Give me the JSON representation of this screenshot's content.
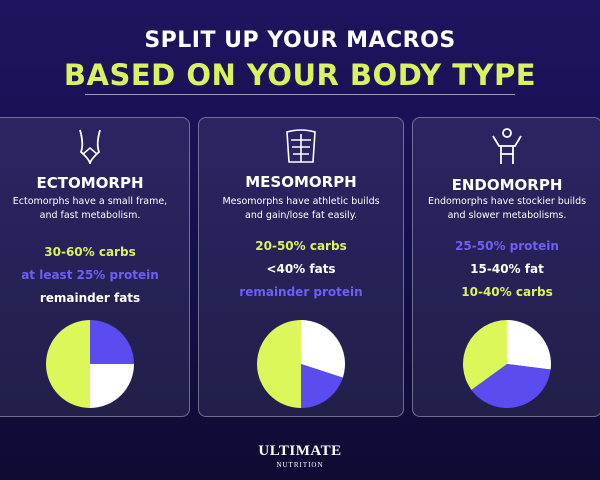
{
  "header": {
    "title": "SPLIT UP YOUR MACROS",
    "subtitle": "BASED ON YOUR BODY TYPE"
  },
  "cards": [
    {
      "title": "ECTOMORPH",
      "description": "Ectomorphs have  a small frame, and fast metabolism.",
      "macros": [
        {
          "text": "30-60% carbs",
          "color": "#d8f45c"
        },
        {
          "text": "at least 25% protein",
          "color": "#6f5ff5"
        },
        {
          "text": "remainder fats",
          "color": "#ffffff"
        }
      ]
    },
    {
      "title": "MESOMORPH",
      "description": "Mesomorphs have athletic builds and gain/lose fat easily.",
      "macros": [
        {
          "text": "20-50% carbs",
          "color": "#d8f45c"
        },
        {
          "text": "<40% fats",
          "color": "#ffffff"
        },
        {
          "text": "remainder protein",
          "color": "#6f5ff5"
        }
      ]
    },
    {
      "title": "ENDOMORPH",
      "description": "Endomorphs have stockier builds and slower metabolisms.",
      "macros": [
        {
          "text": "25-50% protein",
          "color": "#6f5ff5"
        },
        {
          "text": "15-40% fat",
          "color": "#ffffff"
        },
        {
          "text": "10-40% carbs",
          "color": "#d8f45c"
        }
      ]
    }
  ],
  "chart_data": [
    {
      "type": "pie",
      "values": [
        25,
        25,
        50
      ],
      "colors": [
        "#5b4cf0",
        "#ffffff",
        "#dcf75a"
      ]
    },
    {
      "type": "pie",
      "values": [
        30,
        20,
        50
      ],
      "colors": [
        "#ffffff",
        "#5b4cf0",
        "#dcf75a"
      ]
    },
    {
      "type": "pie",
      "values": [
        27,
        38,
        35
      ],
      "colors": [
        "#ffffff",
        "#5b4cf0",
        "#dcf75a"
      ]
    }
  ],
  "footer": {
    "brand": "ULTIMATE",
    "sub": "NUTRITION"
  }
}
